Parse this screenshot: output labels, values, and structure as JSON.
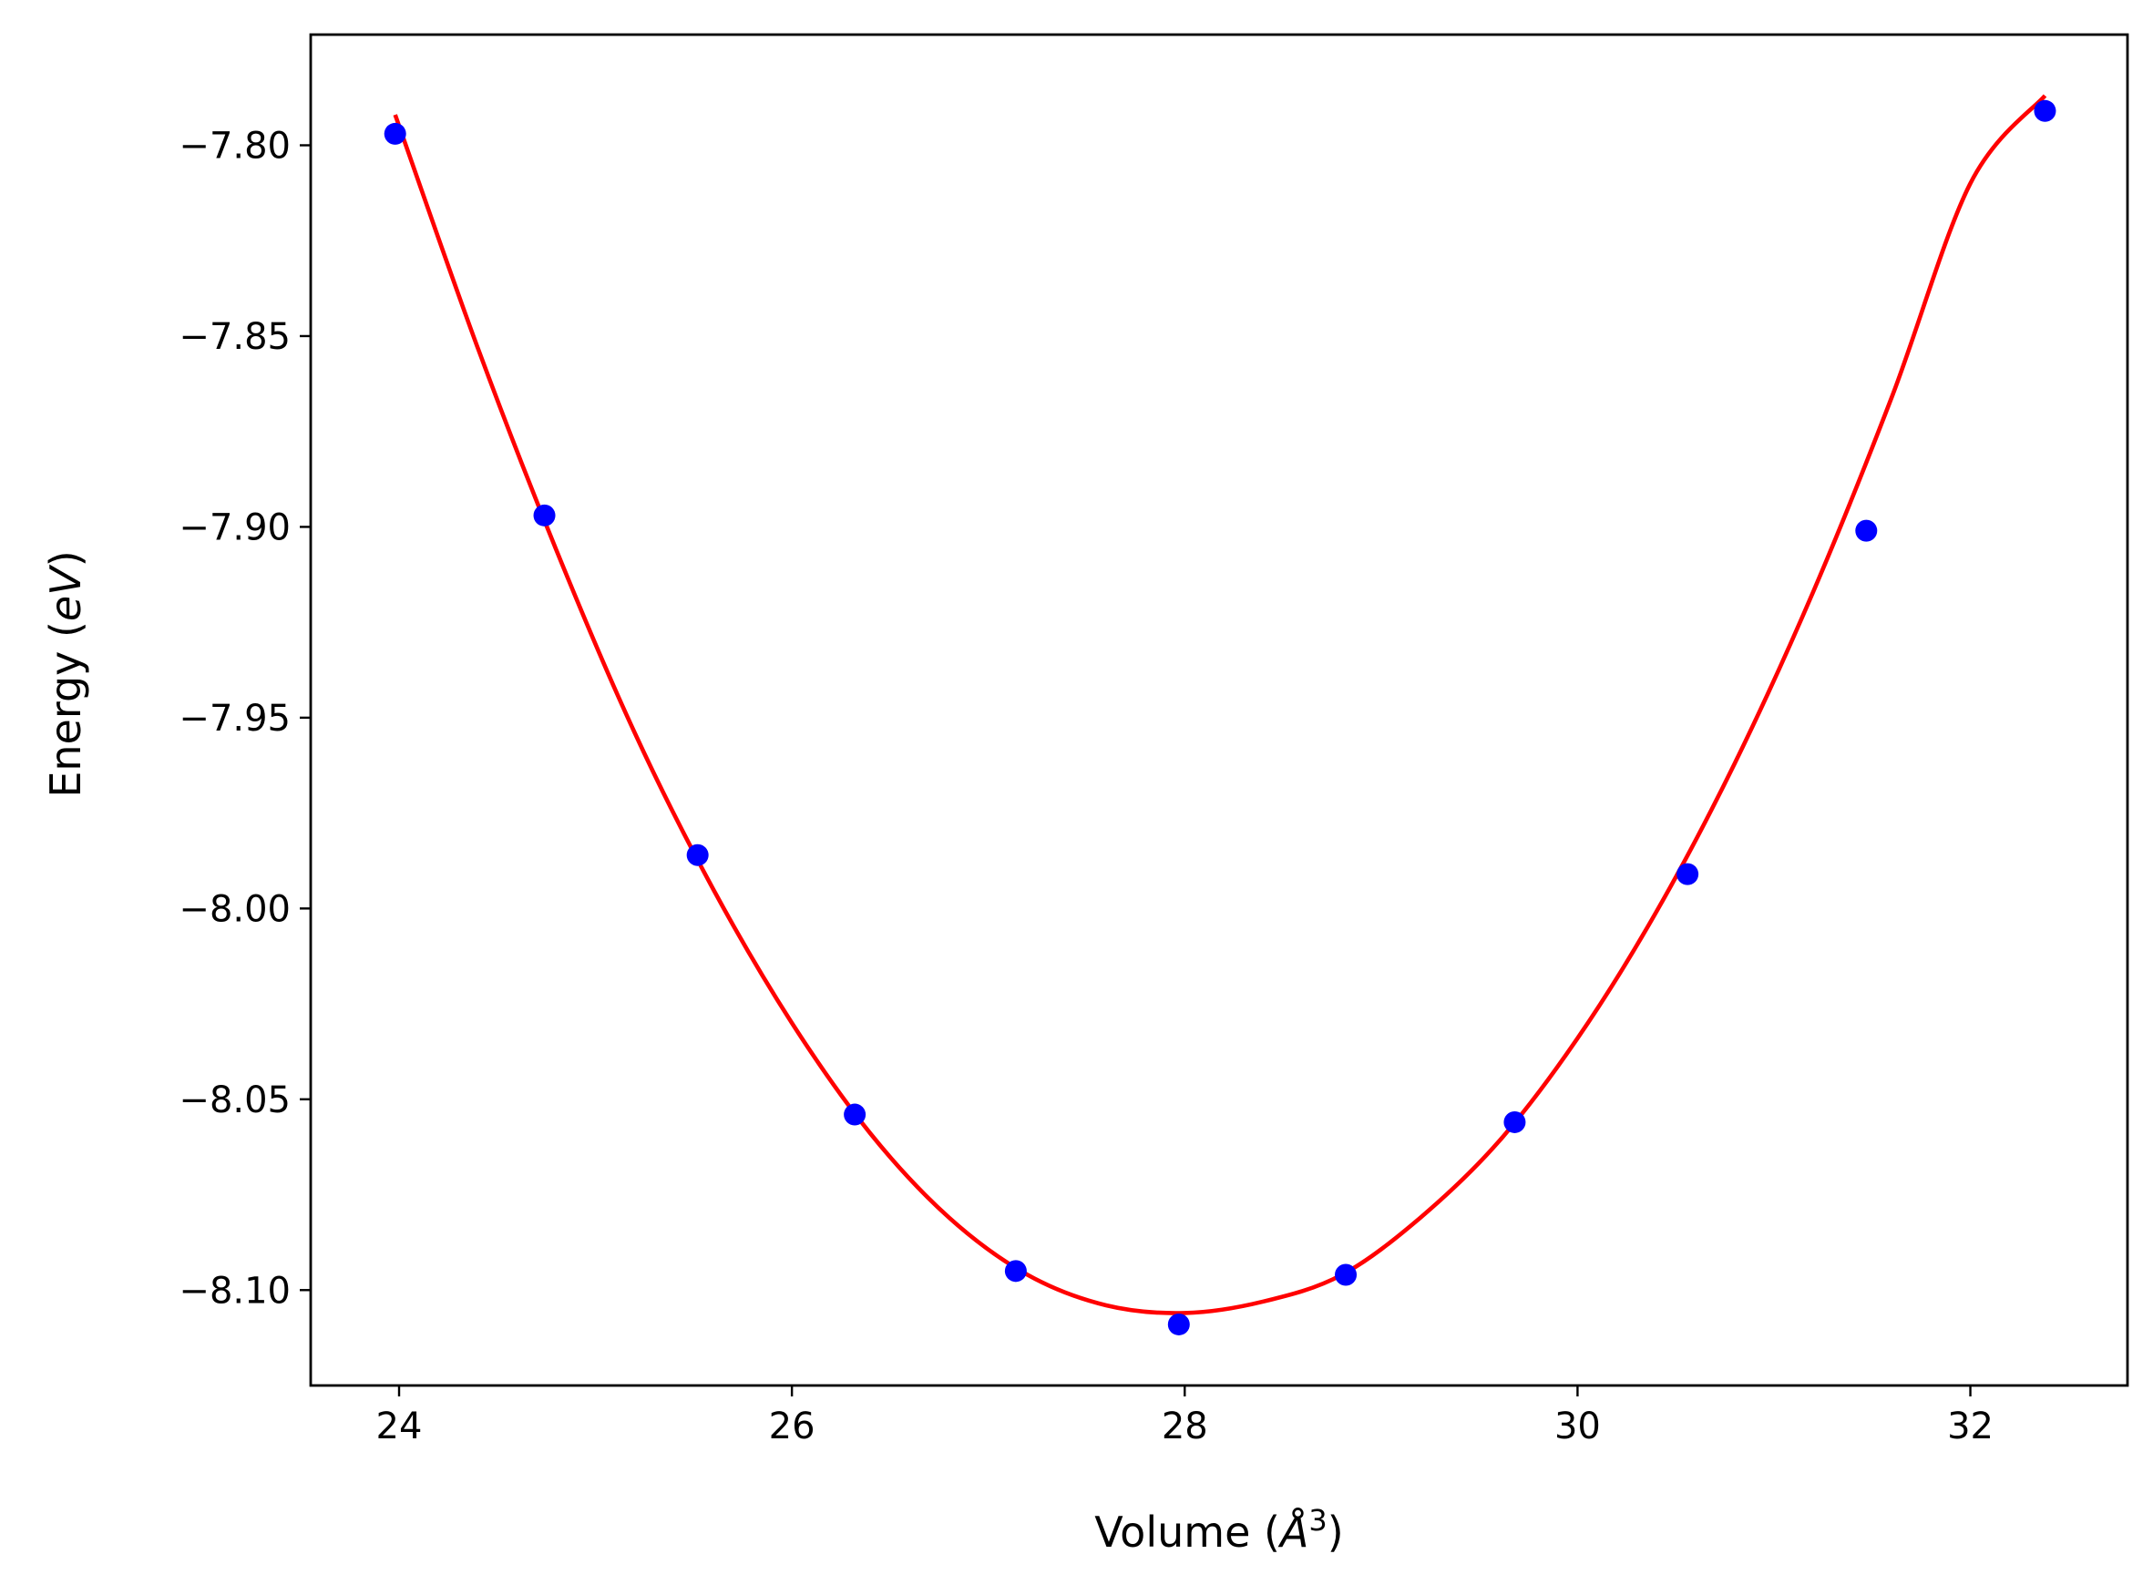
{
  "chart_data": {
    "type": "scatter",
    "title": "",
    "xlabel": {
      "prefix": "Volume (",
      "italic": "Å",
      "superscript": "3",
      "suffix": ")"
    },
    "ylabel": {
      "prefix": "Energy (",
      "italic": "eV",
      "suffix": ")"
    },
    "xlim": [
      23.55,
      32.8
    ],
    "ylim": [
      -8.125,
      -7.771
    ],
    "xticks": [
      {
        "value": 24,
        "label": "24"
      },
      {
        "value": 26,
        "label": "26"
      },
      {
        "value": 28,
        "label": "28"
      },
      {
        "value": 30,
        "label": "30"
      },
      {
        "value": 32,
        "label": "32"
      }
    ],
    "yticks": [
      {
        "value": -7.8,
        "label": "−7.80"
      },
      {
        "value": -7.85,
        "label": "−7.85"
      },
      {
        "value": -7.9,
        "label": "−7.90"
      },
      {
        "value": -7.95,
        "label": "−7.95"
      },
      {
        "value": -8.0,
        "label": "−8.00"
      },
      {
        "value": -8.05,
        "label": "−8.05"
      },
      {
        "value": -8.1,
        "label": "−8.10"
      }
    ],
    "grid": false,
    "legend": "none",
    "series": [
      {
        "kind": "points",
        "color": "#0000ff",
        "x": [
          23.98,
          24.74,
          25.52,
          26.32,
          27.14,
          27.97,
          28.82,
          29.68,
          30.56,
          31.47,
          32.38
        ],
        "y": [
          -7.797,
          -7.897,
          -7.986,
          -8.054,
          -8.095,
          -8.109,
          -8.096,
          -8.056,
          -7.991,
          -7.901,
          -7.791
        ]
      },
      {
        "kind": "fit-curve",
        "color": "#ff0000",
        "x": [
          23.98,
          24.4,
          24.8,
          25.2,
          25.6,
          26.0,
          26.4,
          26.8,
          27.2,
          27.6,
          28.0,
          28.4,
          28.8,
          29.2,
          29.6,
          30.0,
          30.4,
          30.8,
          31.2,
          31.6,
          32.0,
          32.38
        ],
        "y": [
          -7.792,
          -7.853,
          -7.906,
          -7.954,
          -7.995,
          -8.03,
          -8.059,
          -8.081,
          -8.096,
          -8.104,
          -8.106,
          -8.103,
          -8.096,
          -8.081,
          -8.061,
          -8.034,
          -8.001,
          -7.962,
          -7.917,
          -7.866,
          -7.81,
          -7.787
        ]
      }
    ]
  }
}
